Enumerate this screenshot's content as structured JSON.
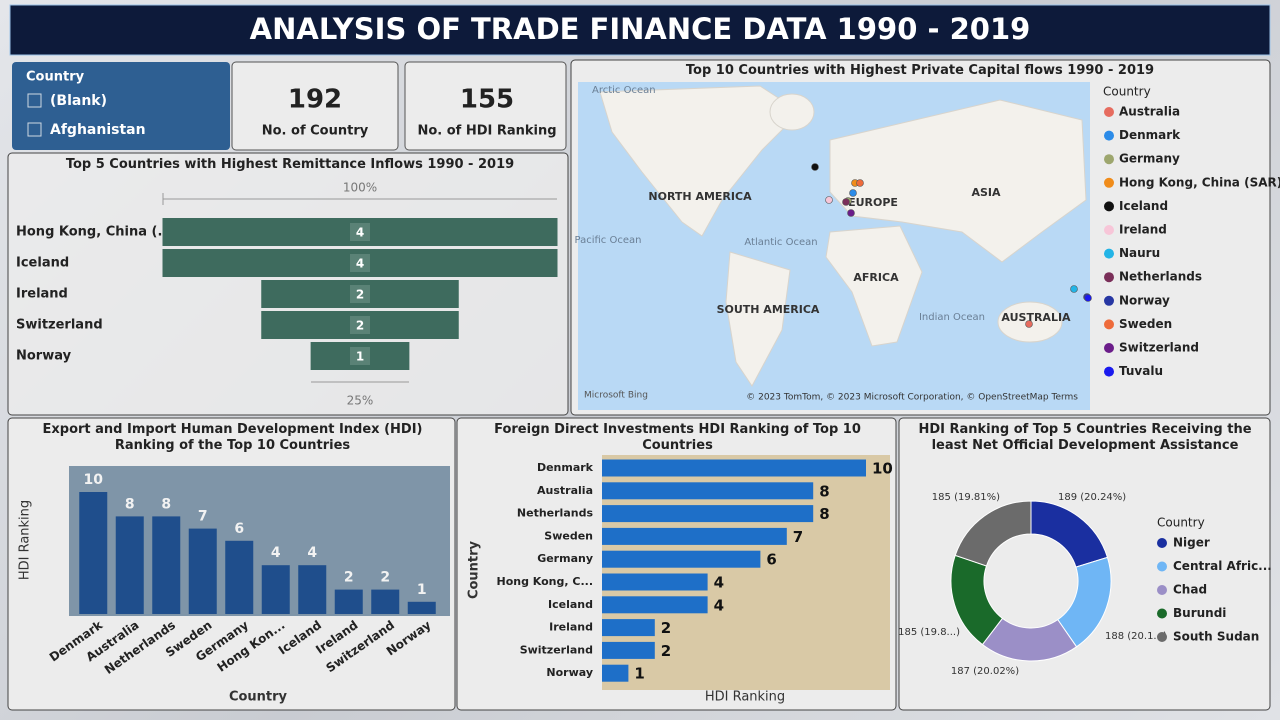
{
  "header": {
    "title": "ANALYSIS OF TRADE FINANCE DATA 1990 - 2019"
  },
  "slicer": {
    "title": "Country",
    "items": [
      "(Blank)",
      "Afghanistan"
    ]
  },
  "cards": [
    {
      "value": 192,
      "label": "No. of Country"
    },
    {
      "value": 155,
      "label": "No. of HDI Ranking"
    }
  ],
  "chart_data": [
    {
      "type": "funnel",
      "title": "Top 5 Countries with Highest Remittance Inflows 1990 - 2019",
      "categories": [
        "Hong Kong, China (...",
        "Iceland",
        "Ireland",
        "Switzerland",
        "Norway"
      ],
      "values": [
        4,
        4,
        2,
        2,
        1
      ],
      "top_label": "100%",
      "bottom_label": "25%",
      "color": "#3e6b5e"
    },
    {
      "type": "map",
      "title": "Top 10 Countries with Highest Private Capital flows 1990 - 2019",
      "legend_title": "Country",
      "series": [
        {
          "name": "Australia",
          "color": "#e66c5f"
        },
        {
          "name": "Denmark",
          "color": "#2b8be8"
        },
        {
          "name": "Germany",
          "color": "#9da66e"
        },
        {
          "name": "Hong Kong, China (SAR)",
          "color": "#f08c1a"
        },
        {
          "name": "Iceland",
          "color": "#111111"
        },
        {
          "name": "Ireland",
          "color": "#f7c6d8"
        },
        {
          "name": "Nauru",
          "color": "#23b4e6"
        },
        {
          "name": "Netherlands",
          "color": "#7a2f59"
        },
        {
          "name": "Norway",
          "color": "#2737a3"
        },
        {
          "name": "Sweden",
          "color": "#ee6b3b"
        },
        {
          "name": "Switzerland",
          "color": "#6b1d8a"
        },
        {
          "name": "Tuvalu",
          "color": "#1a1aee"
        }
      ],
      "labels": [
        "Arctic Ocean",
        "NORTH AMERICA",
        "EUROPE",
        "ASIA",
        "Pacific Ocean",
        "Atlantic Ocean",
        "AFRICA",
        "SOUTH AMERICA",
        "Indian Ocean",
        "AUSTRALIA"
      ],
      "logo": "Microsoft Bing",
      "attribution": "© 2023 TomTom, © 2023 Microsoft Corporation, © OpenStreetMap  Terms"
    },
    {
      "type": "column",
      "title": "Export and Import Human Development Index (HDI) Ranking of the Top 10 Countries",
      "x_label": "Country",
      "y_label": "HDI Ranking",
      "categories": [
        "Denmark",
        "Australia",
        "Netherlands",
        "Sweden",
        "Germany",
        "Hong Kon...",
        "Iceland",
        "Ireland",
        "Switzerland",
        "Norway"
      ],
      "values": [
        10,
        8,
        8,
        7,
        6,
        4,
        4,
        2,
        2,
        1
      ],
      "ylim": [
        0,
        10
      ],
      "color": "#1f4e8c"
    },
    {
      "type": "hbar",
      "title": "Foreign Direct Investments HDI Ranking of Top 10 Countries",
      "x_label": "HDI Ranking",
      "y_label": "Country",
      "categories": [
        "Denmark",
        "Australia",
        "Netherlands",
        "Sweden",
        "Germany",
        "Hong Kong, C...",
        "Iceland",
        "Ireland",
        "Switzerland",
        "Norway"
      ],
      "values": [
        10,
        8,
        8,
        7,
        6,
        4,
        4,
        2,
        2,
        1
      ],
      "xlim": [
        0,
        10
      ],
      "color": "#1e6fc8"
    },
    {
      "type": "donut",
      "title": "HDI Ranking of Top 5 Countries Receiving the least Net Official Development Assistance",
      "legend_title": "Country",
      "categories": [
        "Niger",
        "Central Afric...",
        "Chad",
        "Burundi",
        "South Sudan"
      ],
      "values": [
        189,
        188,
        187,
        185,
        185
      ],
      "value_labels": [
        "189 (20.24%)",
        "188 (20.1...)",
        "187 (20.02%)",
        "185 (19.8...)",
        "185 (19.81%)"
      ],
      "colors": [
        "#1a2fa0",
        "#6fb6f5",
        "#9b8fc7",
        "#1a6a2a",
        "#6b6b6b"
      ]
    }
  ]
}
